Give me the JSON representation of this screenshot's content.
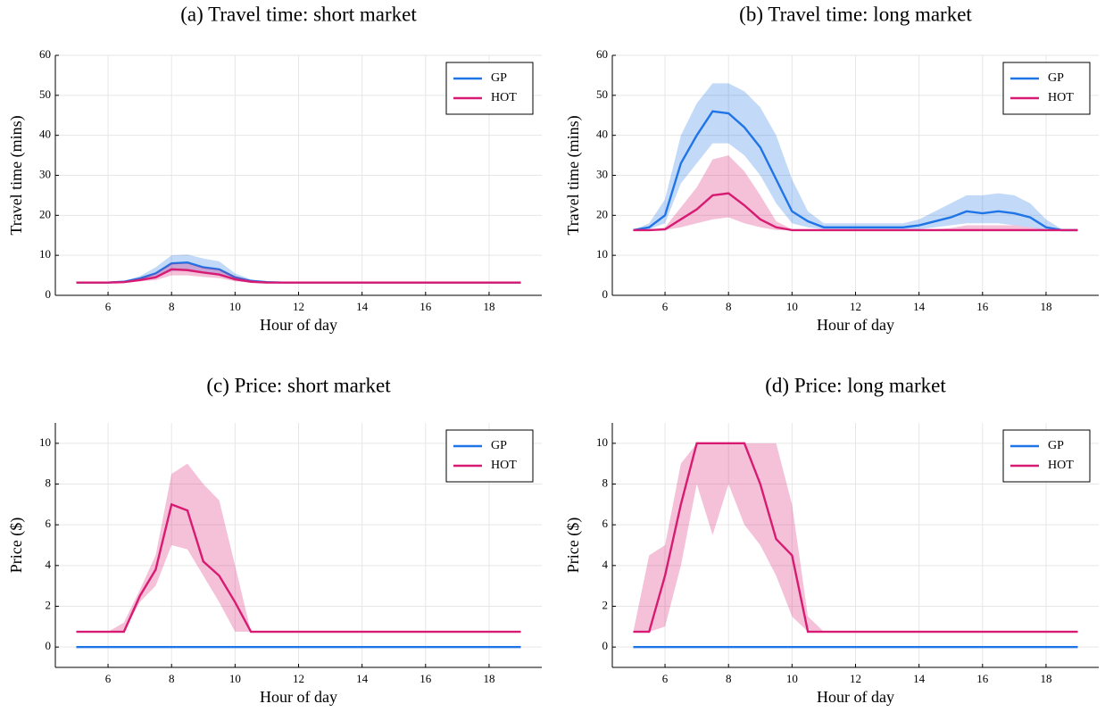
{
  "chart_data": [
    {
      "type": "line",
      "title": "(a) Travel time: short market",
      "xlabel": "Hour of day",
      "ylabel": "Travel time (mins)",
      "x": [
        5,
        5.5,
        6,
        6.5,
        7,
        7.5,
        8,
        8.5,
        9,
        9.5,
        10,
        10.5,
        11,
        11.5,
        12,
        12.5,
        13,
        13.5,
        14,
        14.5,
        15,
        15.5,
        16,
        16.5,
        17,
        17.5,
        18,
        18.5,
        19
      ],
      "xlim": [
        4.34,
        19.66
      ],
      "xticks": [
        6,
        8,
        10,
        12,
        14,
        16,
        18
      ],
      "ylim": [
        0,
        60
      ],
      "yticks": [
        0,
        10,
        20,
        30,
        40,
        50,
        60
      ],
      "grid": true,
      "legend": "top-right",
      "series": [
        {
          "name": "GP",
          "color": "#1f74e6",
          "values": [
            3.2,
            3.2,
            3.2,
            3.4,
            4.2,
            5.5,
            8,
            8.2,
            7,
            6.5,
            4.5,
            3.6,
            3.3,
            3.2,
            3.2,
            3.2,
            3.2,
            3.2,
            3.2,
            3.2,
            3.2,
            3.2,
            3.2,
            3.2,
            3.2,
            3.2,
            3.2,
            3.2,
            3.2
          ],
          "lower": [
            3.2,
            3.2,
            3.2,
            3.2,
            3.8,
            4.5,
            6,
            6.3,
            5.5,
            5,
            3.8,
            3.3,
            3.2,
            3.2,
            3.2,
            3.2,
            3.2,
            3.2,
            3.2,
            3.2,
            3.2,
            3.2,
            3.2,
            3.2,
            3.2,
            3.2,
            3.2,
            3.2,
            3.2
          ],
          "upper": [
            3.2,
            3.2,
            3.3,
            3.6,
            4.8,
            7,
            10,
            10.2,
            9.2,
            8.5,
            5.5,
            4,
            3.4,
            3.2,
            3.2,
            3.2,
            3.2,
            3.2,
            3.2,
            3.2,
            3.2,
            3.2,
            3.2,
            3.2,
            3.2,
            3.2,
            3.2,
            3.2,
            3.2
          ]
        },
        {
          "name": "HOT",
          "color": "#d81b72",
          "values": [
            3.2,
            3.2,
            3.2,
            3.3,
            3.8,
            4.5,
            6.5,
            6.3,
            5.7,
            5.2,
            4,
            3.4,
            3.2,
            3.2,
            3.2,
            3.2,
            3.2,
            3.2,
            3.2,
            3.2,
            3.2,
            3.2,
            3.2,
            3.2,
            3.2,
            3.2,
            3.2,
            3.2,
            3.2
          ],
          "lower": [
            3.2,
            3.2,
            3.2,
            3.2,
            3.5,
            3.8,
            5,
            5,
            4.6,
            4.3,
            3.5,
            3.2,
            3.2,
            3.2,
            3.2,
            3.2,
            3.2,
            3.2,
            3.2,
            3.2,
            3.2,
            3.2,
            3.2,
            3.2,
            3.2,
            3.2,
            3.2,
            3.2,
            3.2
          ],
          "upper": [
            3.2,
            3.2,
            3.2,
            3.5,
            4.3,
            5.5,
            8,
            8,
            7,
            6.5,
            4.8,
            3.8,
            3.3,
            3.2,
            3.2,
            3.2,
            3.2,
            3.2,
            3.2,
            3.2,
            3.2,
            3.2,
            3.2,
            3.2,
            3.2,
            3.2,
            3.2,
            3.2,
            3.2
          ]
        }
      ]
    },
    {
      "type": "line",
      "title": "(b) Travel time: long market",
      "xlabel": "Hour of day",
      "ylabel": "Travel time (mins)",
      "x": [
        5,
        5.5,
        6,
        6.5,
        7,
        7.5,
        8,
        8.5,
        9,
        9.5,
        10,
        10.5,
        11,
        11.5,
        12,
        12.5,
        13,
        13.5,
        14,
        14.5,
        15,
        15.5,
        16,
        16.5,
        17,
        17.5,
        18,
        18.5,
        19
      ],
      "xlim": [
        4.34,
        19.66
      ],
      "xticks": [
        6,
        8,
        10,
        12,
        14,
        16,
        18
      ],
      "ylim": [
        0,
        60
      ],
      "yticks": [
        0,
        10,
        20,
        30,
        40,
        50,
        60
      ],
      "grid": true,
      "legend": "top-right",
      "series": [
        {
          "name": "GP",
          "color": "#1f74e6",
          "values": [
            16.3,
            17,
            20,
            33,
            40,
            46,
            45.5,
            42,
            37,
            29,
            21,
            18.5,
            17,
            17,
            17,
            17,
            17,
            17,
            17.5,
            18.5,
            19.5,
            21,
            20.5,
            21,
            20.5,
            19.5,
            17,
            16.3,
            16.3
          ],
          "lower": [
            16.3,
            16.5,
            18,
            28,
            33,
            38,
            38,
            35,
            30,
            23,
            18,
            17,
            16.5,
            16.3,
            16.3,
            16.3,
            16.3,
            16.3,
            16.5,
            17,
            17.5,
            18,
            18,
            18,
            17.5,
            17,
            16.3,
            16.3,
            16.3
          ],
          "upper": [
            16.3,
            18,
            24,
            40,
            48,
            53,
            53,
            51,
            47,
            40,
            29,
            21,
            18,
            18,
            18,
            18,
            18,
            18,
            19,
            21,
            23,
            25,
            25,
            25.5,
            25,
            23,
            19,
            16.5,
            16.3
          ]
        },
        {
          "name": "HOT",
          "color": "#d81b72",
          "values": [
            16.3,
            16.3,
            16.5,
            19,
            21.5,
            25,
            25.5,
            22.5,
            19,
            17,
            16.3,
            16.3,
            16.3,
            16.3,
            16.3,
            16.3,
            16.3,
            16.3,
            16.3,
            16.3,
            16.3,
            16.3,
            16.3,
            16.3,
            16.3,
            16.3,
            16.3,
            16.3,
            16.3
          ],
          "lower": [
            16.3,
            16.3,
            16.3,
            17,
            18,
            19,
            19.5,
            18,
            17,
            16.3,
            16.3,
            16.3,
            16.3,
            16.3,
            16.3,
            16.3,
            16.3,
            16.3,
            16.3,
            16.3,
            16.3,
            16.3,
            16.3,
            16.3,
            16.3,
            16.3,
            16.3,
            16.3,
            16.3
          ],
          "upper": [
            16.3,
            16.3,
            17,
            22,
            27,
            34,
            35,
            31,
            25,
            18.5,
            16.5,
            16.3,
            16.3,
            16.3,
            16.3,
            16.3,
            16.3,
            16.3,
            16.3,
            16.5,
            16.8,
            17.5,
            17.5,
            17.5,
            17.5,
            17,
            16.5,
            16.3,
            16.3
          ]
        }
      ]
    },
    {
      "type": "line",
      "title": "(c) Price: short market",
      "xlabel": "Hour of day",
      "ylabel": "Price ($)",
      "x": [
        5,
        5.5,
        6,
        6.5,
        7,
        7.5,
        8,
        8.5,
        9,
        9.5,
        10,
        10.5,
        11,
        11.5,
        12,
        12.5,
        13,
        13.5,
        14,
        14.5,
        15,
        15.5,
        16,
        16.5,
        17,
        17.5,
        18,
        18.5,
        19
      ],
      "xlim": [
        4.34,
        19.66
      ],
      "xticks": [
        6,
        8,
        10,
        12,
        14,
        16,
        18
      ],
      "ylim": [
        -1,
        11
      ],
      "yticks": [
        0,
        2,
        4,
        6,
        8,
        10
      ],
      "grid": true,
      "legend": "top-right",
      "series": [
        {
          "name": "GP",
          "color": "#1f74e6",
          "values": [
            0,
            0,
            0,
            0,
            0,
            0,
            0,
            0,
            0,
            0,
            0,
            0,
            0,
            0,
            0,
            0,
            0,
            0,
            0,
            0,
            0,
            0,
            0,
            0,
            0,
            0,
            0,
            0,
            0
          ]
        },
        {
          "name": "HOT",
          "color": "#d81b72",
          "values": [
            0.75,
            0.75,
            0.75,
            0.75,
            2.5,
            3.8,
            7,
            6.7,
            4.2,
            3.5,
            2.2,
            0.75,
            0.75,
            0.75,
            0.75,
            0.75,
            0.75,
            0.75,
            0.75,
            0.75,
            0.75,
            0.75,
            0.75,
            0.75,
            0.75,
            0.75,
            0.75,
            0.75,
            0.75
          ],
          "lower": [
            0.75,
            0.75,
            0.75,
            0.75,
            2.2,
            3,
            5,
            4.8,
            3.5,
            2.2,
            0.75,
            0.75,
            0.75,
            0.75,
            0.75,
            0.75,
            0.75,
            0.75,
            0.75,
            0.75,
            0.75,
            0.75,
            0.75,
            0.75,
            0.75,
            0.75,
            0.75,
            0.75,
            0.75
          ],
          "upper": [
            0.75,
            0.75,
            0.75,
            1.2,
            2.8,
            4.5,
            8.5,
            9,
            8,
            7.2,
            4,
            0.75,
            0.75,
            0.75,
            0.75,
            0.75,
            0.75,
            0.75,
            0.75,
            0.75,
            0.75,
            0.75,
            0.75,
            0.75,
            0.75,
            0.75,
            0.75,
            0.75,
            0.75
          ]
        }
      ]
    },
    {
      "type": "line",
      "title": "(d) Price: long market",
      "xlabel": "Hour of day",
      "ylabel": "Price ($)",
      "x": [
        5,
        5.5,
        6,
        6.5,
        7,
        7.5,
        8,
        8.5,
        9,
        9.5,
        10,
        10.5,
        11,
        11.5,
        12,
        12.5,
        13,
        13.5,
        14,
        14.5,
        15,
        15.5,
        16,
        16.5,
        17,
        17.5,
        18,
        18.5,
        19
      ],
      "xlim": [
        4.34,
        19.66
      ],
      "xticks": [
        6,
        8,
        10,
        12,
        14,
        16,
        18
      ],
      "ylim": [
        -1,
        11
      ],
      "yticks": [
        0,
        2,
        4,
        6,
        8,
        10
      ],
      "grid": true,
      "legend": "top-right",
      "series": [
        {
          "name": "GP",
          "color": "#1f74e6",
          "values": [
            0,
            0,
            0,
            0,
            0,
            0,
            0,
            0,
            0,
            0,
            0,
            0,
            0,
            0,
            0,
            0,
            0,
            0,
            0,
            0,
            0,
            0,
            0,
            0,
            0,
            0,
            0,
            0,
            0
          ]
        },
        {
          "name": "HOT",
          "color": "#d81b72",
          "values": [
            0.75,
            0.75,
            3.5,
            7,
            10,
            10,
            10,
            10,
            8,
            5.3,
            4.5,
            0.75,
            0.75,
            0.75,
            0.75,
            0.75,
            0.75,
            0.75,
            0.75,
            0.75,
            0.75,
            0.75,
            0.75,
            0.75,
            0.75,
            0.75,
            0.75,
            0.75,
            0.75
          ],
          "lower": [
            0.75,
            0.75,
            1,
            4,
            8,
            5.5,
            8,
            6,
            5,
            3.5,
            1.5,
            0.75,
            0.75,
            0.75,
            0.75,
            0.75,
            0.75,
            0.75,
            0.75,
            0.75,
            0.75,
            0.75,
            0.75,
            0.75,
            0.75,
            0.75,
            0.75,
            0.75,
            0.75
          ],
          "upper": [
            0.75,
            4.5,
            5,
            9,
            10,
            10,
            10,
            10,
            10,
            10,
            7,
            1.5,
            0.75,
            0.75,
            0.75,
            0.75,
            0.75,
            0.75,
            0.75,
            0.75,
            0.75,
            0.75,
            0.75,
            0.75,
            0.75,
            0.75,
            0.75,
            0.75,
            0.75
          ]
        }
      ]
    }
  ]
}
